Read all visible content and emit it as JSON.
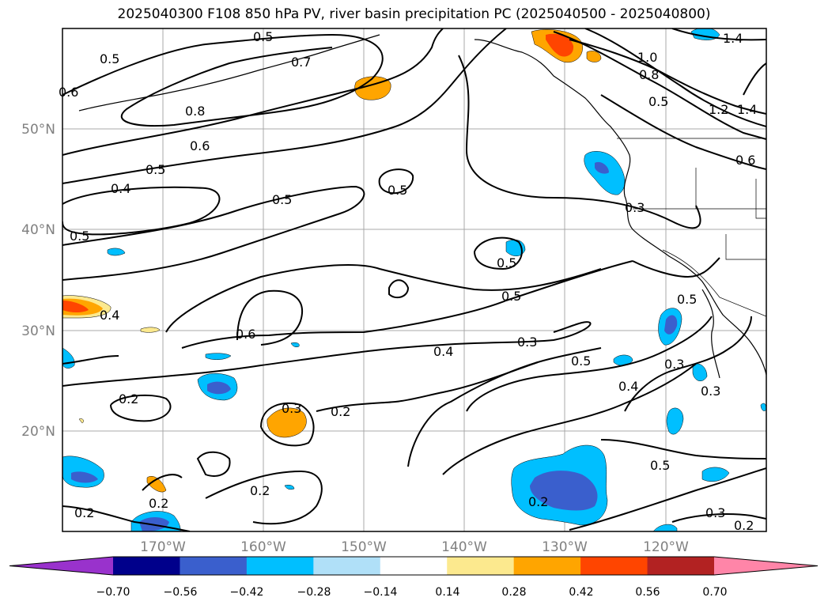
{
  "title": "2025040300 F108 850 hPa PV, river basin precipitation PC (2025040500 - 2025040800)",
  "lat_labels": [
    "50°N",
    "40°N",
    "30°N",
    "20°N"
  ],
  "lon_labels": [
    "170°W",
    "160°W",
    "150°W",
    "140°W",
    "130°W",
    "120°W"
  ],
  "contour_labels": [
    "0.5",
    "0.6",
    "0.7",
    "0.8",
    "0.6",
    "0.5",
    "0.4",
    "0.5",
    "0.5",
    "0.5",
    "0.5",
    "0.4",
    "0.6",
    "0.5",
    "0.4",
    "0.3",
    "0.5",
    "0.4",
    "0.3",
    "0.2",
    "0.3",
    "0.2",
    "0.2",
    "0.2",
    "0.2",
    "0.5",
    "0.3",
    "0.2",
    "0.3",
    "0.2",
    "1.0",
    "0.8",
    "0.5",
    "1.2",
    "1.4",
    "1.4",
    "0.6",
    "0.3",
    "0.5",
    "0.5"
  ],
  "colorbar": {
    "ticks": [
      "−0.70",
      "−0.56",
      "−0.42",
      "−0.28",
      "−0.14",
      "0.14",
      "0.28",
      "0.42",
      "0.56",
      "0.70"
    ],
    "colors": [
      "#9932cc",
      "#00008b",
      "#3a5fcd",
      "#00bfff",
      "#b0e0f8",
      "#ffffff",
      "#fce98e",
      "#ffa500",
      "#ff4500",
      "#b22222",
      "#ff85a8"
    ]
  }
}
